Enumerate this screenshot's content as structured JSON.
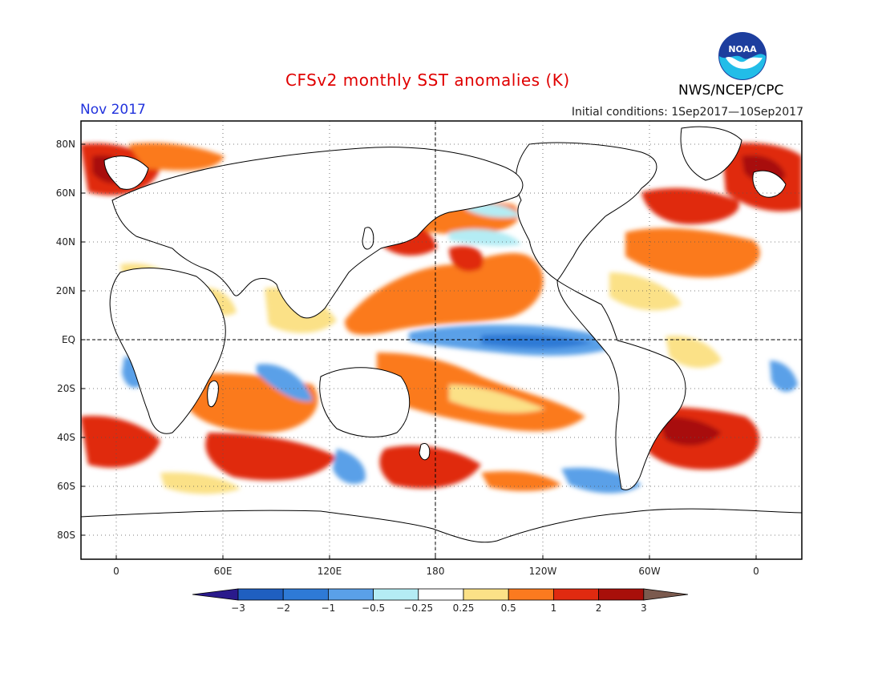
{
  "header": {
    "title": "CFSv2 monthly SST anomalies (K)",
    "month": "Nov 2017",
    "initial_conditions": "Initial conditions: 1Sep2017—10Sep2017",
    "agency": "NWS/NCEP/CPC",
    "logo_text": "NOAA"
  },
  "axes": {
    "lat_labels": [
      "80N",
      "60N",
      "40N",
      "20N",
      "EQ",
      "20S",
      "40S",
      "60S",
      "80S"
    ],
    "lon_labels": [
      "0",
      "60E",
      "120E",
      "180",
      "120W",
      "60W",
      "0"
    ]
  },
  "colorbar": {
    "tick_labels": [
      "−3",
      "−2",
      "−1",
      "−0.5",
      "−0.25",
      "0.25",
      "0.5",
      "1",
      "2",
      "3"
    ],
    "colors": [
      "#2a1a8c",
      "#1f5fc0",
      "#2e7ad6",
      "#5aa0e8",
      "#b4ecf4",
      "#ffffff",
      "#fbe187",
      "#fb7a1f",
      "#e02a10",
      "#a80f0a",
      "#7b5a4e"
    ]
  },
  "colors": {
    "land_outline": "#000000",
    "grid": "#555555",
    "title": "#e00000",
    "month": "#2233dd"
  }
}
